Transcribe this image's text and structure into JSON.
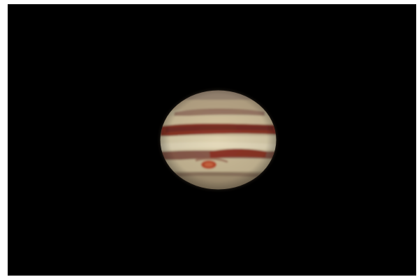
{
  "scene": {
    "subject_icon": "jupiter-planet-icon",
    "background_color": "#000000",
    "frame_color": "#ffffff",
    "planet_colors": {
      "cream_zone": "#d8c9a5",
      "tan_zone": "#b9a98a",
      "red_belt": "#8d3526",
      "dark_belt": "#5a2c25",
      "great_red_spot": "#b94a2b"
    }
  }
}
